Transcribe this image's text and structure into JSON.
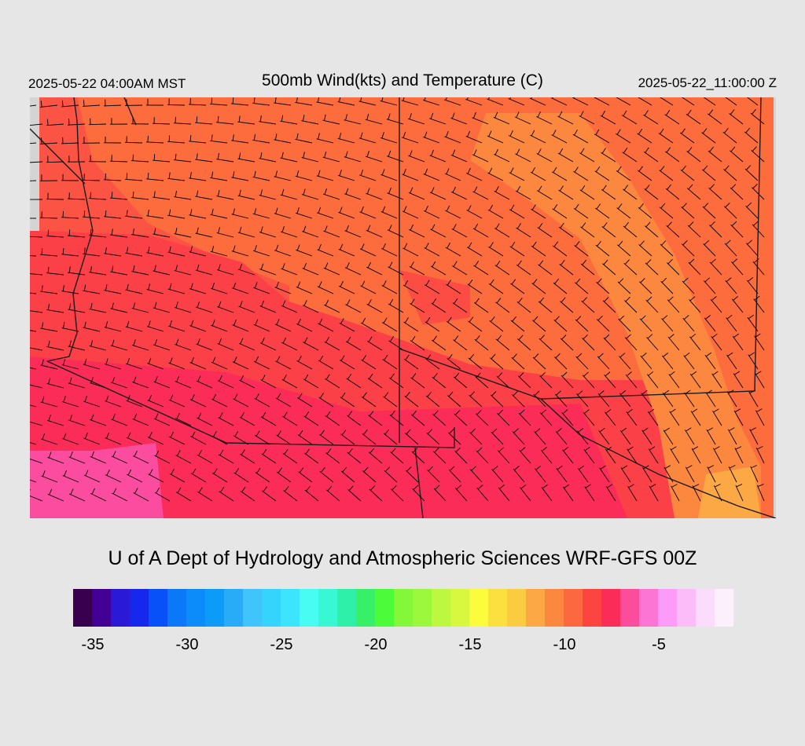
{
  "header": {
    "local_time": "2025-05-22 04:00AM MST",
    "title": "500mb Wind(kts) and Temperature (C)",
    "valid_time": "2025-05-22_11:00:00 Z"
  },
  "credit": "U of A Dept of Hydrology and Atmospheric Sciences WRF-GFS 00Z",
  "colorbar": {
    "colors": [
      "#3a0050",
      "#420094",
      "#2a1ad8",
      "#1628ec",
      "#0850f8",
      "#0a78f8",
      "#0c8cf8",
      "#0c9cf8",
      "#28acf8",
      "#40c4fc",
      "#34d4fc",
      "#3ce4fc",
      "#48fcf4",
      "#38f8d4",
      "#2ef0a8",
      "#38f068",
      "#4cfc38",
      "#84f838",
      "#9cf83c",
      "#bcf840",
      "#d8f840",
      "#fcfc3c",
      "#fce040",
      "#fccc40",
      "#fca844",
      "#fc8840",
      "#fc6840",
      "#fc4440",
      "#fc2c58",
      "#fc4c9c",
      "#fc74d4",
      "#fc9cf8",
      "#fcbcf8",
      "#fcdcfc",
      "#fcf0fc"
    ],
    "ticks": [
      {
        "label": "-35",
        "value": -35
      },
      {
        "label": "-30",
        "value": -30
      },
      {
        "label": "-25",
        "value": -25
      },
      {
        "label": "-20",
        "value": -20
      },
      {
        "label": "-15",
        "value": -15
      },
      {
        "label": "-10",
        "value": -10
      },
      {
        "label": "-5",
        "value": -5
      }
    ]
  },
  "map": {
    "field": "500mb temperature (C) with wind barbs (kts)",
    "dominant_colors": [
      "#fc6c3c",
      "#fc5440",
      "#fc3c4c",
      "#fc2c58",
      "#fc4c9c",
      "#fca040"
    ]
  }
}
